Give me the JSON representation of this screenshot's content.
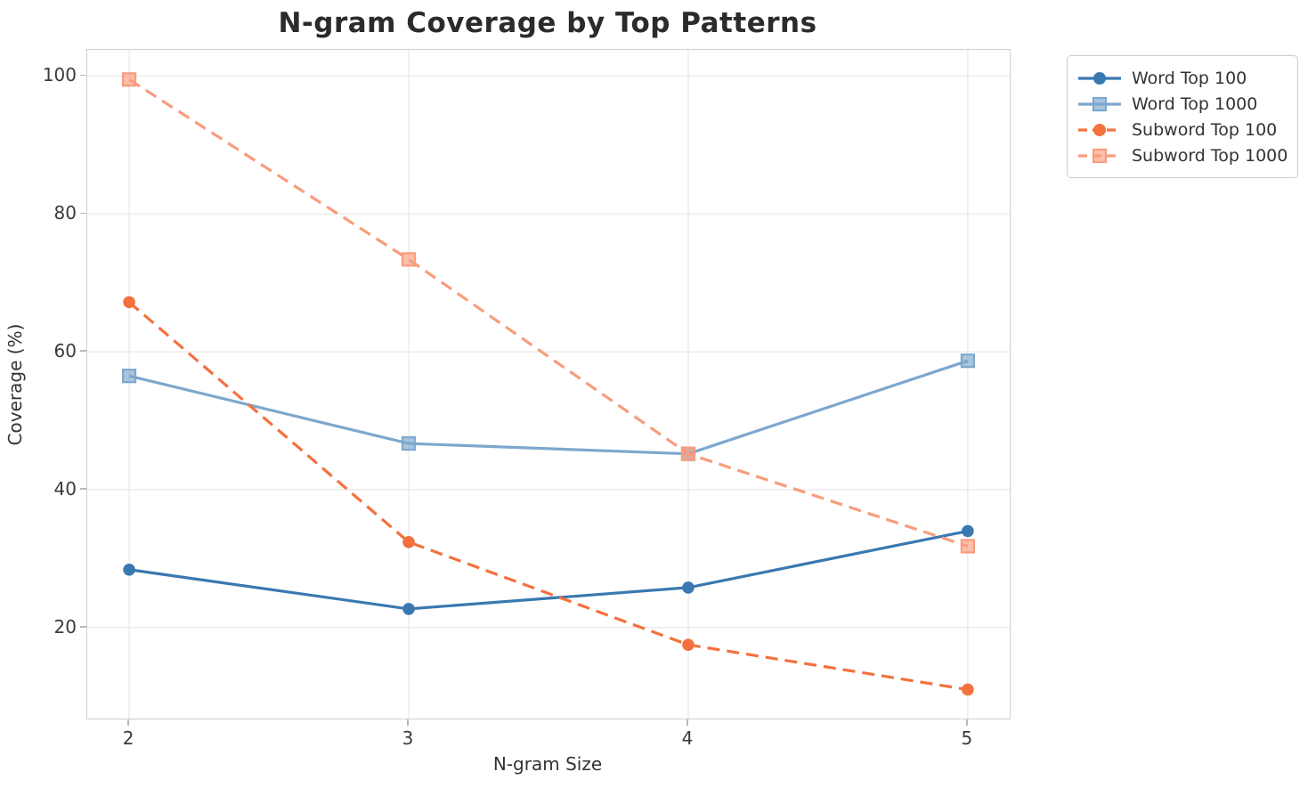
{
  "title": "N-gram Coverage by Top Patterns",
  "axes": {
    "xlabel": "N-gram Size",
    "ylabel": "Coverage (%)"
  },
  "chart_data": {
    "type": "line",
    "x": [
      2,
      3,
      4,
      5
    ],
    "series": [
      {
        "name": "Word Top 100",
        "values": [
          28.4,
          22.7,
          25.8,
          34.0
        ],
        "color": "#3A78B0",
        "line": "solid",
        "marker": "circle"
      },
      {
        "name": "Word Top 1000",
        "values": [
          56.5,
          46.7,
          45.2,
          58.7
        ],
        "color": "#7DA7CE",
        "line": "solid",
        "marker": "square"
      },
      {
        "name": "Subword Top 100",
        "values": [
          67.2,
          32.4,
          17.5,
          11.0
        ],
        "color": "#F4713D",
        "line": "dashed",
        "marker": "circle"
      },
      {
        "name": "Subword Top 1000",
        "values": [
          99.5,
          73.4,
          45.2,
          31.8
        ],
        "color": "#F99C7C",
        "line": "dashed",
        "marker": "square"
      }
    ],
    "title": "N-gram Coverage by Top Patterns",
    "xlabel": "N-gram Size",
    "ylabel": "Coverage (%)",
    "xticks": [
      2,
      3,
      4,
      5
    ],
    "yticks": [
      20,
      40,
      60,
      80,
      100
    ],
    "xlim": [
      1.85,
      5.15
    ],
    "ylim": [
      6.8,
      103.8
    ],
    "grid": true,
    "legend_position": "outside-top-right"
  }
}
